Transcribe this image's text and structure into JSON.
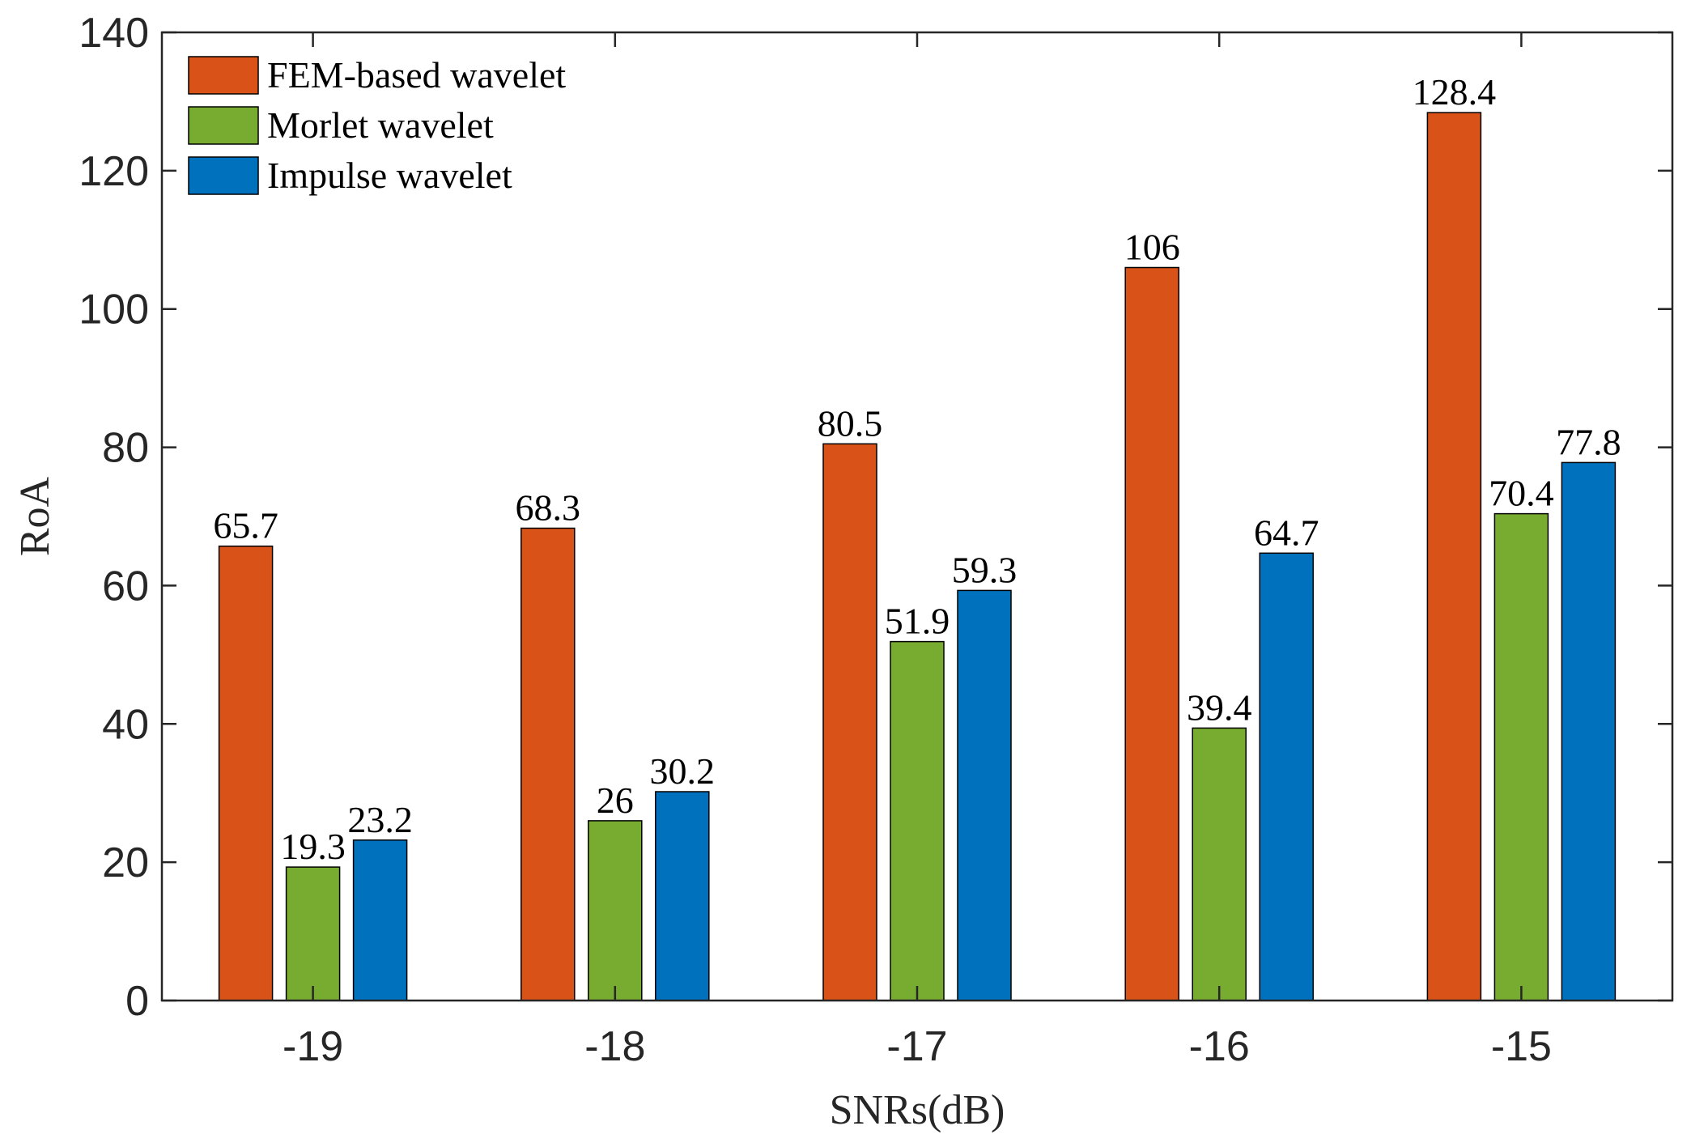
{
  "chart_data": {
    "type": "bar",
    "title": "",
    "xlabel": "SNRs(dB)",
    "ylabel": "RoA",
    "categories": [
      "-19",
      "-18",
      "-17",
      "-16",
      "-15"
    ],
    "ylim": [
      0,
      140
    ],
    "yticks": [
      "0",
      "20",
      "40",
      "60",
      "80",
      "100",
      "120",
      "140"
    ],
    "legend_position": "top-left",
    "series": [
      {
        "name": "FEM-based wavelet",
        "color": "#D95319",
        "values": [
          65.7,
          68.3,
          80.5,
          106,
          128.4
        ],
        "labels": [
          "65.7",
          "68.3",
          "80.5",
          "106",
          "128.4"
        ]
      },
      {
        "name": "Morlet wavelet",
        "color": "#77AC30",
        "values": [
          19.3,
          26,
          51.9,
          39.4,
          70.4
        ],
        "labels": [
          "19.3",
          "26",
          "51.9",
          "39.4",
          "70.4"
        ]
      },
      {
        "name": "Impulse wavelet",
        "color": "#0072BD",
        "values": [
          23.2,
          30.2,
          59.3,
          64.7,
          77.8
        ],
        "labels": [
          "23.2",
          "30.2",
          "59.3",
          "64.7",
          "77.8"
        ]
      }
    ]
  }
}
